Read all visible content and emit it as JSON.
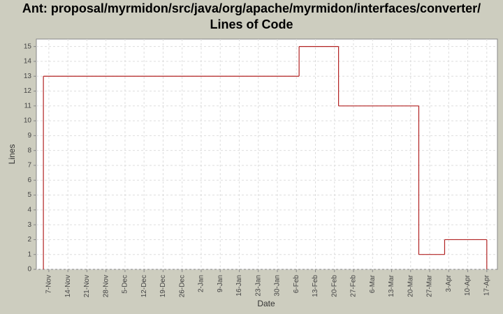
{
  "chart_data": {
    "type": "step",
    "title": [
      "Ant: proposal/myrmidon/src/java/org/apache/myrmidon/interfaces/converter/",
      "Lines of Code"
    ],
    "x_label": "Date",
    "y_label": "Lines",
    "series": [
      {
        "name": "Lines",
        "color": "#b22222",
        "x": [
          5,
          5,
          99,
          113.5,
          143,
          152.5,
          168
        ],
        "values": [
          0,
          13,
          15,
          11,
          1,
          2,
          0
        ]
      }
    ],
    "xlim": [
      2.4,
      171.9
    ],
    "xticks": [
      {
        "value": 7,
        "label": "7-Nov"
      },
      {
        "value": 14,
        "label": "14-Nov"
      },
      {
        "value": 21,
        "label": "21-Nov"
      },
      {
        "value": 28,
        "label": "28-Nov"
      },
      {
        "value": 35,
        "label": "5-Dec"
      },
      {
        "value": 42,
        "label": "12-Dec"
      },
      {
        "value": 49,
        "label": "19-Dec"
      },
      {
        "value": 56,
        "label": "26-Dec"
      },
      {
        "value": 63,
        "label": "2-Jan"
      },
      {
        "value": 70,
        "label": "9-Jan"
      },
      {
        "value": 77,
        "label": "16-Jan"
      },
      {
        "value": 84,
        "label": "23-Jan"
      },
      {
        "value": 91,
        "label": "30-Jan"
      },
      {
        "value": 98,
        "label": "6-Feb"
      },
      {
        "value": 105,
        "label": "13-Feb"
      },
      {
        "value": 112,
        "label": "20-Feb"
      },
      {
        "value": 119,
        "label": "27-Feb"
      },
      {
        "value": 126,
        "label": "6-Mar"
      },
      {
        "value": 133,
        "label": "13-Mar"
      },
      {
        "value": 140,
        "label": "20-Mar"
      },
      {
        "value": 147,
        "label": "27-Mar"
      },
      {
        "value": 154,
        "label": "3-Apr"
      },
      {
        "value": 161,
        "label": "10-Apr"
      },
      {
        "value": 168,
        "label": "17-Apr"
      }
    ],
    "ylim": [
      0,
      15.5
    ],
    "yticks": [
      0,
      1,
      2,
      3,
      4,
      5,
      6,
      7,
      8,
      9,
      10,
      11,
      12,
      13,
      14,
      15
    ],
    "grid": true
  }
}
